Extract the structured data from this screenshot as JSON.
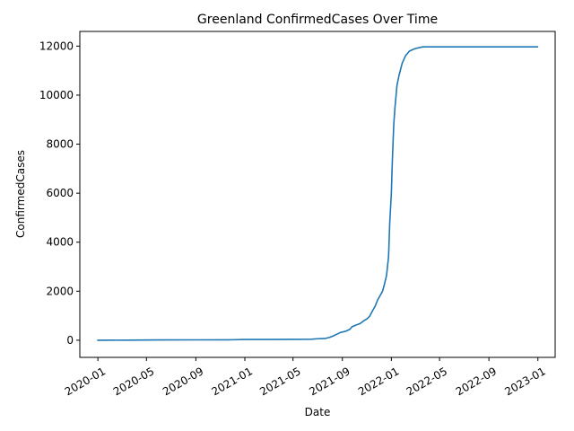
{
  "chart_data": {
    "type": "line",
    "title": "Greenland  ConfirmedCases Over Time",
    "xlabel": "Date",
    "ylabel": "ConfirmedCases",
    "xlim": [
      "2019-11-17",
      "2023-02-13"
    ],
    "ylim": [
      -700,
      12600
    ],
    "x_ticks": [
      "2020-01",
      "2020-05",
      "2020-09",
      "2021-01",
      "2021-05",
      "2021-09",
      "2022-01",
      "2022-05",
      "2022-09",
      "2023-01"
    ],
    "y_ticks": [
      0,
      2000,
      4000,
      6000,
      8000,
      10000,
      12000
    ],
    "grid": false,
    "series": [
      {
        "color": "#1f77b4",
        "points": [
          [
            "2020-01-01",
            0
          ],
          [
            "2020-03-15",
            2
          ],
          [
            "2020-06-01",
            11
          ],
          [
            "2020-09-01",
            14
          ],
          [
            "2020-12-01",
            19
          ],
          [
            "2021-01-01",
            30
          ],
          [
            "2021-03-01",
            31
          ],
          [
            "2021-05-01",
            35
          ],
          [
            "2021-06-15",
            40
          ],
          [
            "2021-07-01",
            60
          ],
          [
            "2021-07-20",
            70
          ],
          [
            "2021-08-01",
            120
          ],
          [
            "2021-08-10",
            180
          ],
          [
            "2021-08-20",
            260
          ],
          [
            "2021-08-28",
            320
          ],
          [
            "2021-09-10",
            370
          ],
          [
            "2021-09-20",
            450
          ],
          [
            "2021-09-25",
            550
          ],
          [
            "2021-10-05",
            620
          ],
          [
            "2021-10-15",
            680
          ],
          [
            "2021-10-25",
            800
          ],
          [
            "2021-11-01",
            870
          ],
          [
            "2021-11-08",
            980
          ],
          [
            "2021-11-15",
            1200
          ],
          [
            "2021-11-22",
            1400
          ],
          [
            "2021-11-28",
            1650
          ],
          [
            "2021-12-05",
            1850
          ],
          [
            "2021-12-10",
            2000
          ],
          [
            "2021-12-15",
            2300
          ],
          [
            "2021-12-20",
            2650
          ],
          [
            "2021-12-25",
            3400
          ],
          [
            "2021-12-28",
            4800
          ],
          [
            "2022-01-01",
            6000
          ],
          [
            "2022-01-03",
            7100
          ],
          [
            "2022-01-05",
            8000
          ],
          [
            "2022-01-07",
            8800
          ],
          [
            "2022-01-10",
            9500
          ],
          [
            "2022-01-15",
            10400
          ],
          [
            "2022-01-20",
            10800
          ],
          [
            "2022-01-28",
            11300
          ],
          [
            "2022-02-05",
            11600
          ],
          [
            "2022-02-15",
            11800
          ],
          [
            "2022-03-01",
            11900
          ],
          [
            "2022-03-20",
            11970
          ],
          [
            "2022-06-01",
            11971
          ],
          [
            "2022-09-01",
            11971
          ],
          [
            "2022-12-31",
            11971
          ]
        ]
      }
    ]
  }
}
